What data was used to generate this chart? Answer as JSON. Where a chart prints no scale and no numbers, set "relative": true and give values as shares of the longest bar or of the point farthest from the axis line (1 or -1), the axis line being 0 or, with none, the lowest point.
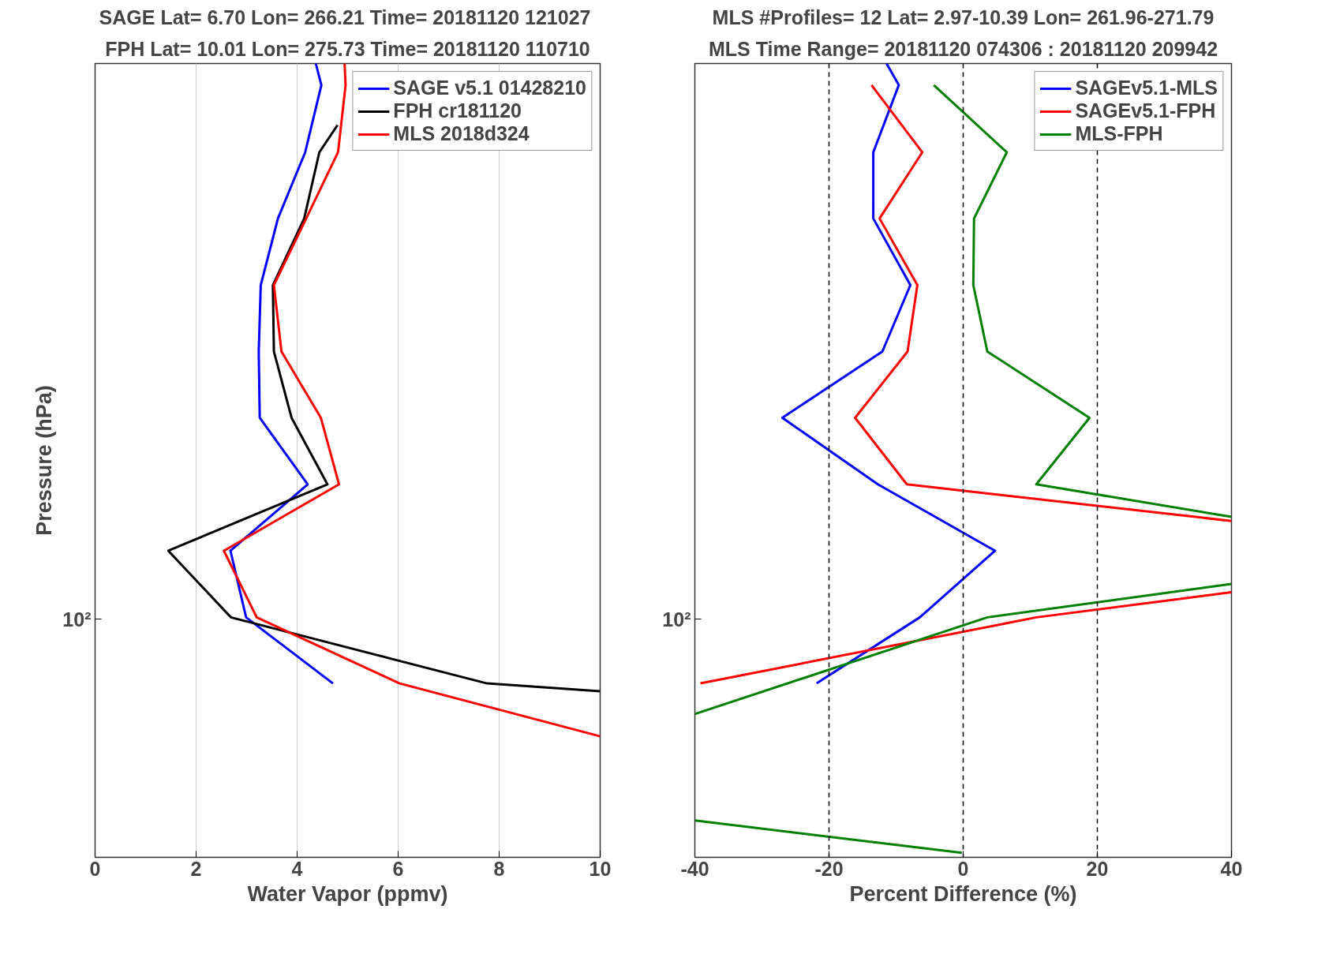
{
  "chart_data": [
    {
      "type": "line",
      "title": "SAGE Lat=  6.70 Lon= 266.21 Time= 20181120 121027",
      "subtitle": "FPH Lat= 10.01 Lon= 275.73 Time= 20181120 110710",
      "xlabel": "Water Vapor (ppmv)",
      "ylabel": "Pressure (hPa)",
      "xlim": [
        0,
        10
      ],
      "xticks": [
        0,
        2,
        4,
        6,
        8,
        10
      ],
      "relative": true,
      "annotations": [
        "10²"
      ],
      "grid": "x",
      "legend": "top right",
      "line_style": "solid",
      "series": [
        {
          "name": "SAGE v5.1 01428210",
          "color": "#0000ff",
          "x": [
            4.37,
            4.48,
            4.16,
            3.62,
            3.28,
            3.24,
            3.26,
            4.21,
            2.68,
            2.99,
            4.71
          ],
          "values": [
            1.0,
            0.9728,
            0.8882,
            0.8048,
            0.7209,
            0.6372,
            0.5537,
            0.4699,
            0.3862,
            0.3023,
            0.2191
          ]
        },
        {
          "name": "FPH cr181120",
          "color": "#000000",
          "x": [
            4.8,
            4.44,
            4.14,
            3.52,
            3.54,
            3.89,
            4.6,
            1.45,
            2.69,
            7.76,
            10.0
          ],
          "values": [
            0.9225,
            0.8882,
            0.8048,
            0.7209,
            0.6372,
            0.5537,
            0.4699,
            0.3862,
            0.3023,
            0.2191,
            0.2092
          ]
        },
        {
          "name": "MLS 2018d324",
          "color": "#ff0000",
          "x": [
            4.94,
            4.96,
            4.81,
            4.18,
            3.54,
            3.69,
            4.47,
            4.83,
            2.55,
            3.2,
            6.03,
            10.0
          ],
          "values": [
            1.0,
            0.9728,
            0.8882,
            0.8048,
            0.7209,
            0.6372,
            0.5537,
            0.4699,
            0.3862,
            0.3023,
            0.2191,
            0.1525
          ]
        }
      ]
    },
    {
      "type": "line",
      "title": "MLS #Profiles= 12 Lat= 2.97-10.39 Lon= 261.96-271.79",
      "subtitle": "MLS Time Range= 20181120 074306 : 20181120 209942",
      "xlabel": "Percent Difference (%)",
      "xlim": [
        -40,
        40
      ],
      "xticks": [
        -40,
        -20,
        0,
        20,
        40
      ],
      "relative": true,
      "annotations": [
        "10²"
      ],
      "legend": "top right",
      "line_style": "solid",
      "ref_lines": [
        {
          "axis": "x",
          "value": -20,
          "label": null,
          "color": "#000000",
          "line_style": "dashed"
        },
        {
          "axis": "x",
          "value": 0,
          "label": null,
          "color": "#000000",
          "line_style": "dashed"
        },
        {
          "axis": "x",
          "value": 20,
          "label": null,
          "color": "#000000",
          "line_style": "dashed"
        }
      ],
      "series": [
        {
          "name": "SAGEv5.1-MLS",
          "color": "#0000ff",
          "x": [
            -11.42,
            -9.6,
            -13.4,
            -13.4,
            -7.87,
            -12.05,
            -26.96,
            -12.72,
            4.75,
            -6.47,
            -21.85
          ],
          "values": [
            1.0,
            0.9728,
            0.8882,
            0.8048,
            0.7209,
            0.6372,
            0.5537,
            0.4699,
            0.3862,
            0.3023,
            0.2191
          ]
        },
        {
          "name": "SAGEv5.1-FPH",
          "color": "#ff0000",
          "x": [
            -13.66,
            -6.1,
            -12.46,
            -6.83,
            -8.29,
            -16.11,
            -8.4,
            40,
            null,
            40,
            10.9,
            -39.17
          ],
          "values": [
            0.9728,
            0.8882,
            0.8048,
            0.7209,
            0.6372,
            0.5537,
            0.4699,
            0.4237,
            null,
            0.3339,
            0.3023,
            0.2191
          ]
        },
        {
          "name": "MLS-FPH",
          "color": "#008000",
          "x": [
            -4.38,
            6.5,
            1.62,
            1.51,
            3.6,
            18.83,
            10.9,
            40,
            null,
            40,
            3.6,
            -40,
            null,
            -40,
            -0.2
          ],
          "values": [
            0.9728,
            0.8882,
            0.8048,
            0.7209,
            0.6372,
            0.5537,
            0.4699,
            0.4289,
            null,
            0.3444,
            0.3023,
            0.1806,
            null,
            0.0464,
            0.0057
          ]
        }
      ]
    }
  ]
}
